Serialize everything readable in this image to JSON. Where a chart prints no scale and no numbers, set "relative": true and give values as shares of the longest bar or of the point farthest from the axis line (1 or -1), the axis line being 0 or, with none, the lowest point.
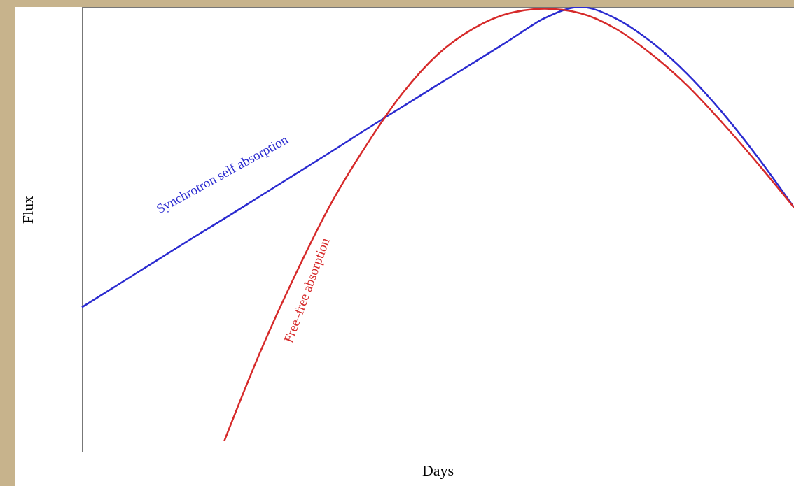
{
  "chart_data": {
    "type": "line",
    "relative": true,
    "xlabel": "Days",
    "ylabel": "Flux",
    "marker": "none",
    "line_style": "solid",
    "categories": [
      null,
      null,
      null,
      null,
      null,
      null,
      null,
      null,
      null,
      null,
      null,
      null,
      null,
      null,
      null,
      null,
      null,
      null,
      null,
      null,
      null
    ],
    "series": [
      {
        "name": "Synchrotron self absorption",
        "color": "#2b2bd0",
        "values": [
          0.326,
          0.376,
          0.426,
          0.476,
          0.525,
          0.575,
          0.625,
          0.675,
          0.726,
          0.776,
          0.826,
          0.875,
          0.925,
          0.975,
          1.0,
          0.974,
          0.921,
          0.85,
          0.762,
          0.661,
          0.55
        ]
      },
      {
        "name": "Free–free absorption",
        "color": "#d62a2a",
        "values": [
          null,
          null,
          null,
          null,
          0.026,
          0.224,
          0.4,
          0.559,
          0.691,
          0.806,
          0.894,
          0.952,
          0.986,
          0.996,
          0.986,
          0.951,
          0.894,
          0.824,
          0.739,
          0.647,
          0.55
        ]
      }
    ]
  }
}
